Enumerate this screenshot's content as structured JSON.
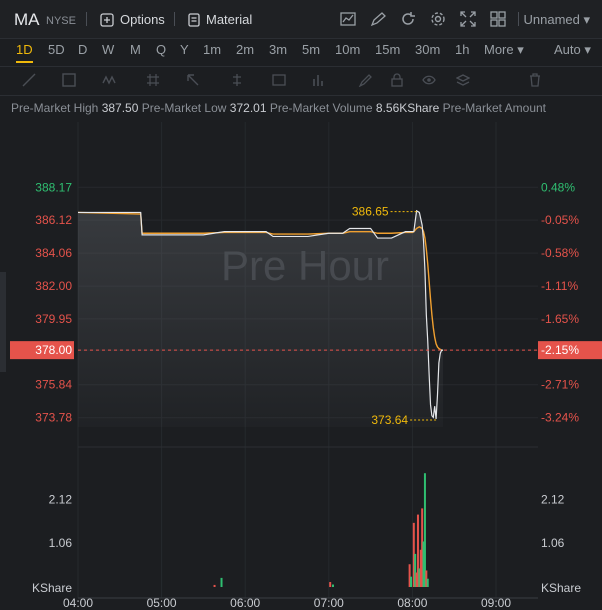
{
  "header": {
    "symbol": "MA",
    "exchange": "NYSE",
    "options_label": "Options",
    "material_label": "Material",
    "layout_name": "Unnamed"
  },
  "timeframes": [
    "1D",
    "5D",
    "D",
    "W",
    "M",
    "Q",
    "Y",
    "1m",
    "2m",
    "3m",
    "5m",
    "10m",
    "15m",
    "30m",
    "1h"
  ],
  "timeframe_active": "1D",
  "more_label": "More",
  "auto_label": "Auto",
  "info": {
    "high_label": "Pre-Market High",
    "high_value": "387.50",
    "low_label": "Pre-Market Low",
    "low_value": "372.01",
    "volume_label": "Pre-Market Volume",
    "volume_value": "8.56KShare",
    "amount_label": "Pre-Market Amount"
  },
  "watermark": "Pre Hour",
  "chart_data": {
    "type": "line",
    "title": "",
    "price_ticks": [
      "388.17",
      "386.12",
      "384.06",
      "382.00",
      "379.95",
      "378.00",
      "375.84",
      "373.78"
    ],
    "percent_ticks": [
      "0.48%",
      "-0.05%",
      "-0.58%",
      "-1.11%",
      "-1.65%",
      "-2.15%",
      "-2.71%",
      "-3.24%"
    ],
    "current_price": "378.00",
    "current_percent": "-2.15%",
    "high_marker": "386.65",
    "low_marker": "373.64",
    "ylim": [
      373.2,
      389.0
    ],
    "volume_ticks": [
      "2.12",
      "1.06"
    ],
    "volume_unit": "KShare",
    "x_ticks": [
      "04:00",
      "05:00",
      "06:00",
      "07:00",
      "08:00",
      "09:00"
    ],
    "series": [
      {
        "x": [
          "04:00",
          "04:45",
          "04:46",
          "05:30",
          "05:45",
          "06:15",
          "06:20",
          "06:45",
          "07:00",
          "07:10",
          "07:15",
          "07:30",
          "07:35",
          "07:45",
          "07:55",
          "08:00",
          "08:01",
          "08:03",
          "08:05",
          "08:07",
          "08:08",
          "08:09",
          "08:10",
          "08:11",
          "08:12",
          "08:13",
          "08:14",
          "08:15",
          "08:16",
          "08:17",
          "08:18",
          "08:19",
          "08:20",
          "08:21",
          "08:22"
        ],
        "values": [
          386.6,
          386.6,
          385.2,
          385.2,
          385.4,
          385.4,
          385.1,
          385.1,
          385.3,
          385.3,
          385.6,
          385.6,
          385.0,
          385.0,
          385.4,
          385.4,
          385.4,
          386.7,
          386.6,
          385.8,
          384.8,
          383.0,
          380.2,
          378.6,
          376.5,
          374.6,
          373.9,
          373.8,
          374.5,
          373.7,
          375.2,
          377.2,
          377.8,
          378.0,
          378.0
        ]
      },
      {
        "x": [
          "04:00",
          "04:45",
          "04:46",
          "05:30",
          "05:45",
          "06:15",
          "06:20",
          "06:45",
          "07:00",
          "07:10",
          "07:15",
          "07:30",
          "07:35",
          "07:45",
          "07:55",
          "08:00",
          "08:01",
          "08:03",
          "08:05",
          "08:07",
          "08:08",
          "08:09",
          "08:10",
          "08:11",
          "08:12",
          "08:13",
          "08:14",
          "08:15",
          "08:16",
          "08:17",
          "08:18",
          "08:19",
          "08:20",
          "08:21",
          "08:22"
        ],
        "values": [
          386.6,
          386.5,
          385.3,
          385.3,
          385.35,
          385.35,
          385.25,
          385.25,
          385.3,
          385.3,
          385.4,
          385.4,
          385.3,
          385.3,
          385.35,
          385.35,
          385.4,
          385.6,
          385.7,
          385.6,
          385.4,
          385.0,
          384.3,
          383.4,
          382.3,
          381.2,
          380.2,
          379.4,
          378.8,
          378.4,
          378.2,
          378.1,
          378.05,
          378.0,
          378.0
        ]
      }
    ],
    "volumes": [
      {
        "time": "05:38",
        "value": 0.05,
        "color": "#e5534b"
      },
      {
        "time": "05:43",
        "value": 0.22,
        "color": "#2fbf71"
      },
      {
        "time": "07:01",
        "value": 0.12,
        "color": "#e5534b"
      },
      {
        "time": "07:03",
        "value": 0.06,
        "color": "#2fbf71"
      },
      {
        "time": "07:58",
        "value": 0.55,
        "color": "#e5534b"
      },
      {
        "time": "07:59",
        "value": 0.25,
        "color": "#2fbf71"
      },
      {
        "time": "08:01",
        "value": 1.55,
        "color": "#e5534b"
      },
      {
        "time": "08:02",
        "value": 0.8,
        "color": "#2fbf71"
      },
      {
        "time": "08:03",
        "value": 0.35,
        "color": "#e5534b"
      },
      {
        "time": "08:04",
        "value": 1.75,
        "color": "#e5534b"
      },
      {
        "time": "08:05",
        "value": 0.45,
        "color": "#2fbf71"
      },
      {
        "time": "08:06",
        "value": 0.9,
        "color": "#e5534b"
      },
      {
        "time": "08:07",
        "value": 1.9,
        "color": "#e5534b"
      },
      {
        "time": "08:08",
        "value": 1.1,
        "color": "#2fbf71"
      },
      {
        "time": "08:09",
        "value": 2.75,
        "color": "#2fbf71"
      },
      {
        "time": "08:10",
        "value": 0.4,
        "color": "#e5534b"
      },
      {
        "time": "08:11",
        "value": 0.2,
        "color": "#2fbf71"
      }
    ],
    "colors": {
      "last": "#e5e7ea",
      "avg": "#f0a030",
      "up": "#2fbf71",
      "down": "#e5534b",
      "marker": "#f0b90b"
    }
  }
}
